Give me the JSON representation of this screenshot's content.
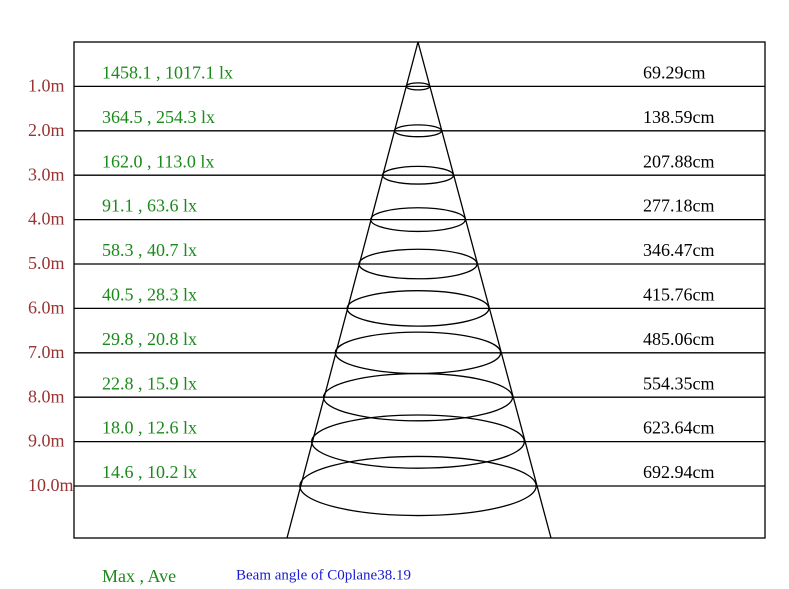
{
  "rows": [
    {
      "distance": "1.0m",
      "lux": "1458.1 , 1017.1 lx",
      "diameter": "69.29cm"
    },
    {
      "distance": "2.0m",
      "lux": "364.5 , 254.3 lx",
      "diameter": "138.59cm"
    },
    {
      "distance": "3.0m",
      "lux": "162.0 , 113.0 lx",
      "diameter": "207.88cm"
    },
    {
      "distance": "4.0m",
      "lux": "91.1 , 63.6 lx",
      "diameter": "277.18cm"
    },
    {
      "distance": "5.0m",
      "lux": "58.3 , 40.7 lx",
      "diameter": "346.47cm"
    },
    {
      "distance": "6.0m",
      "lux": "40.5 , 28.3 lx",
      "diameter": "415.76cm"
    },
    {
      "distance": "7.0m",
      "lux": "29.8 , 20.8 lx",
      "diameter": "485.06cm"
    },
    {
      "distance": "8.0m",
      "lux": "22.8 , 15.9 lx",
      "diameter": "554.35cm"
    },
    {
      "distance": "9.0m",
      "lux": "18.0 , 12.6 lx",
      "diameter": "623.64cm"
    },
    {
      "distance": "10.0m",
      "lux": "14.6 , 10.2 lx",
      "diameter": "692.94cm"
    }
  ],
  "legend": "Max , Ave",
  "beam_angle": "Beam angle of C0plane38.19"
}
